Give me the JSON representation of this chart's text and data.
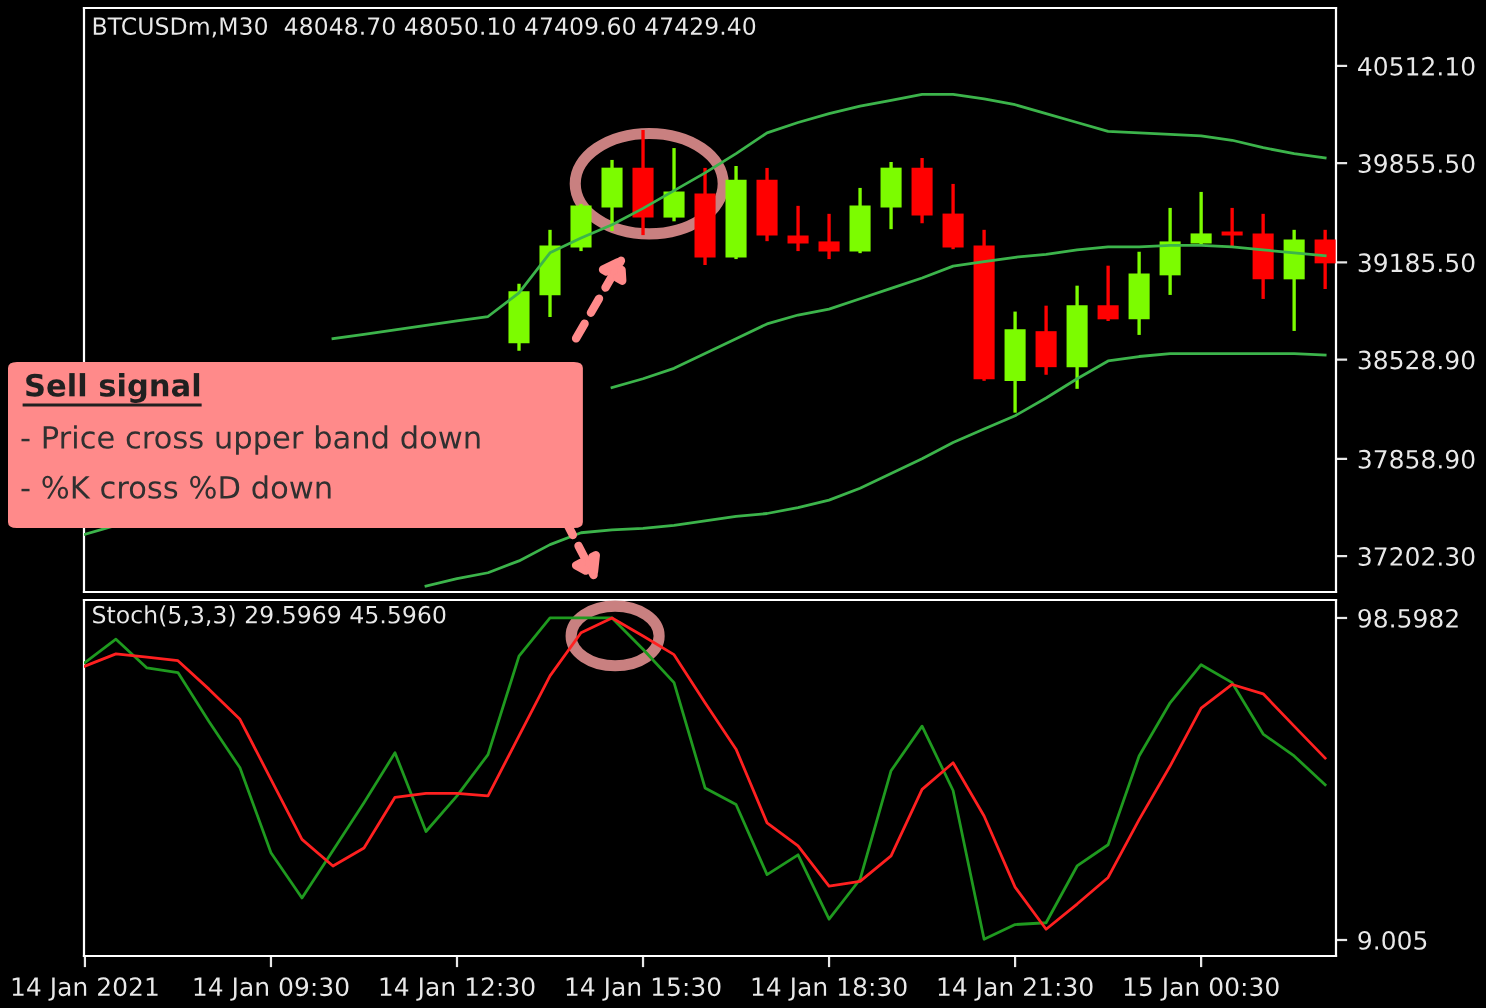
{
  "chart_data": [
    {
      "type": "candlestick",
      "title": "BTCUSDm,M30  48048.70 48050.10 47409.60 47429.40",
      "categories": [
        null,
        null,
        null,
        null,
        null,
        null,
        null,
        null,
        null,
        null,
        null,
        null,
        null,
        null,
        null,
        null,
        null,
        null,
        null,
        null,
        null,
        null,
        null,
        null,
        null,
        null,
        null,
        null,
        null,
        null,
        null,
        null,
        null,
        null,
        null,
        null,
        null,
        null,
        null,
        null,
        null
      ],
      "ohlc": [
        null,
        null,
        null,
        null,
        null,
        null,
        null,
        null,
        null,
        null,
        null,
        null,
        null,
        null,
        [
          38640,
          39030,
          38600,
          38990
        ],
        [
          38963,
          39394,
          38828,
          39300
        ],
        [
          39286,
          39569,
          39273,
          39569
        ],
        [
          39556,
          39866,
          39408,
          39825
        ],
        [
          39825,
          40068,
          39381,
          39488
        ],
        [
          39488,
          39946,
          39474,
          39664
        ],
        [
          39650,
          39812,
          39179,
          39219
        ],
        [
          39219,
          39825,
          39219,
          39744
        ],
        [
          39744,
          39812,
          39340,
          39367
        ],
        [
          39367,
          39556,
          39273,
          39313
        ],
        [
          39327,
          39502,
          39219,
          39259
        ],
        [
          39259,
          39677,
          39259,
          39569
        ],
        [
          39556,
          39852,
          39421,
          39825
        ],
        [
          39825,
          39879,
          39461,
          39502
        ],
        [
          39515,
          39704,
          39286,
          39286
        ],
        [
          39300,
          39394,
          38397,
          38397
        ],
        [
          38384,
          38842,
          38182,
          38734
        ],
        [
          38721,
          38882,
          38438,
          38478
        ],
        [
          38478,
          39017,
          38343,
          38896
        ],
        [
          38896,
          39152,
          38801,
          38801
        ],
        [
          38801,
          39246,
          38707,
          39111
        ],
        [
          39098,
          39542,
          38977,
          39327
        ],
        [
          39313,
          39650,
          39313,
          39381
        ],
        [
          39394,
          39542,
          39300,
          39367
        ],
        [
          39381,
          39502,
          38950,
          39071
        ],
        [
          39071,
          39394,
          38734,
          39340
        ],
        [
          39340,
          39394,
          39017,
          39179
        ]
      ],
      "colors": [
        null,
        null,
        null,
        null,
        null,
        null,
        null,
        null,
        null,
        null,
        null,
        null,
        null,
        null,
        "#7cfc00",
        "#7cfc00",
        "#7cfc00",
        "#7cfc00",
        "#ff0000",
        "#7cfc00",
        "#ff0000",
        "#7cfc00",
        "#ff0000",
        "#ff0000",
        "#ff0000",
        "#7cfc00",
        "#7cfc00",
        "#ff0000",
        "#ff0000",
        "#ff0000",
        "#7cfc00",
        "#ff0000",
        "#7cfc00",
        "#ff0000",
        "#7cfc00",
        "#7cfc00",
        "#7cfc00",
        "#ff0000",
        "#ff0000",
        "#7cfc00",
        "#ff0000"
      ],
      "series": [
        {
          "type": "line",
          "color": "#3cb44b",
          "values": [
            null,
            null,
            null,
            null,
            null,
            null,
            null,
            null,
            38670,
            38700,
            38730,
            38760,
            38790,
            38820,
            38980,
            39250,
            39350,
            39440,
            39550,
            39670,
            39790,
            39920,
            40060,
            40130,
            40190,
            40240,
            40280,
            40320,
            40320,
            40290,
            40250,
            40190,
            40130,
            40070,
            40060,
            40050,
            40040,
            40010,
            39960,
            39920,
            39890
          ]
        },
        {
          "type": "line",
          "color": "#3cb44b",
          "values": [
            37350,
            37410,
            null,
            null,
            null,
            null,
            null,
            null,
            null,
            null,
            null,
            null,
            null,
            null,
            null,
            null,
            null,
            38340,
            38400,
            38470,
            38570,
            38670,
            38770,
            38830,
            38870,
            38940,
            39010,
            39080,
            39160,
            39190,
            39220,
            39240,
            39270,
            39290,
            39290,
            39300,
            39300,
            39290,
            39270,
            39250,
            39230
          ]
        },
        {
          "type": "line",
          "color": "#3cb44b",
          "values": [
            null,
            null,
            null,
            null,
            null,
            null,
            null,
            null,
            null,
            null,
            null,
            37000,
            37050,
            37090,
            37170,
            37280,
            37360,
            37380,
            37390,
            37410,
            37440,
            37470,
            37490,
            37530,
            37580,
            37660,
            37760,
            37860,
            37970,
            38060,
            38150,
            38270,
            38400,
            38520,
            38550,
            38570,
            38570,
            38570,
            38570,
            38570,
            38560
          ]
        }
      ],
      "ylim": [
        36960,
        40903
      ],
      "yticks": [
        {
          "value": 40512.1,
          "label": "40512.10"
        },
        {
          "value": 39855.5,
          "label": "39855.50"
        },
        {
          "value": 39185.5,
          "label": "39185.50"
        },
        {
          "value": 38528.9,
          "label": "38528.90"
        },
        {
          "value": 37858.9,
          "label": "37858.90"
        },
        {
          "value": 37202.3,
          "label": "37202.30"
        }
      ],
      "tick_labels": "y",
      "grid": false,
      "annotations": [
        "Sell signal",
        "- Price cross upper band down",
        "- %K cross %D down"
      ]
    },
    {
      "type": "line",
      "title": "Stoch(5,3,3) 29.5969 45.5960",
      "categories": [
        "14 Jan 2021",
        null,
        null,
        null,
        null,
        null,
        "14 Jan 09:30",
        null,
        null,
        null,
        null,
        null,
        "14 Jan 12:30",
        null,
        null,
        null,
        null,
        null,
        "14 Jan 15:30",
        null,
        null,
        null,
        null,
        null,
        "14 Jan 18:30",
        null,
        null,
        null,
        null,
        null,
        "14 Jan 21:30",
        null,
        null,
        null,
        null,
        null,
        "15 Jan 00:30",
        null,
        null,
        null,
        null
      ],
      "series": [
        {
          "color": "#1f9a1f",
          "values": [
            86.2,
            92.7,
            84.7,
            83.4,
            69.8,
            56.9,
            33.3,
            20.7,
            33.9,
            47.2,
            61.1,
            39.2,
            49.1,
            60.6,
            88.0,
            98.6,
            98.6,
            98.6,
            89.9,
            80.6,
            51.3,
            46.7,
            27.2,
            32.7,
            14.8,
            25.9,
            56.1,
            68.5,
            50.6,
            9.2,
            13.3,
            13.8,
            29.6,
            35.5,
            60.2,
            75.0,
            85.6,
            80.6,
            66.3,
            60.2,
            52.2
          ]
        },
        {
          "color": "#ff2020",
          "values": [
            85.2,
            88.6,
            87.7,
            86.7,
            78.8,
            70.4,
            53.7,
            37.0,
            29.6,
            34.6,
            48.7,
            49.8,
            49.8,
            49.1,
            65.8,
            82.5,
            94.5,
            98.6,
            93.6,
            88.4,
            75.0,
            62.1,
            41.6,
            35.2,
            24.0,
            25.3,
            32.4,
            50.9,
            58.3,
            43.5,
            23.7,
            12.0,
            19.0,
            26.4,
            42.5,
            57.4,
            73.5,
            80.1,
            77.5,
            68.5,
            59.6
          ]
        }
      ],
      "ylim": [
        4.55,
        103.6
      ],
      "yticks": [
        98.5982,
        9.005
      ],
      "grid": false
    }
  ]
}
